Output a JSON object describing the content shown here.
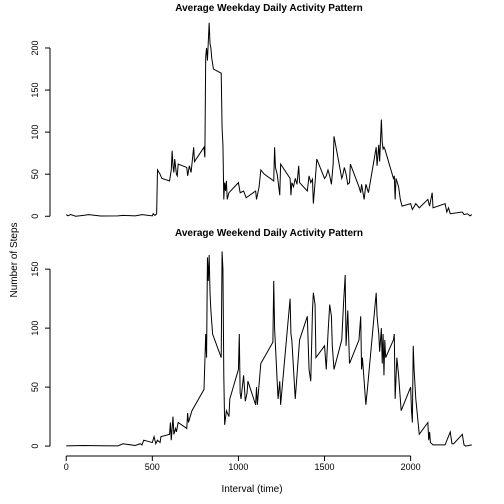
{
  "shared": {
    "xlabel": "Interval (time)",
    "ylabel": "Number of Steps"
  },
  "chart_data": [
    {
      "type": "line",
      "title": "Average Weekday Daily Activity Pattern",
      "x": [
        0,
        10,
        25,
        55,
        100,
        130,
        200,
        300,
        330,
        400,
        440,
        500,
        505,
        515,
        525,
        530,
        545,
        555,
        600,
        610,
        615,
        620,
        625,
        630,
        640,
        645,
        650,
        700,
        705,
        715,
        725,
        740,
        745,
        800,
        805,
        810,
        815,
        820,
        830,
        835,
        840,
        845,
        855,
        900,
        905,
        910,
        915,
        920,
        925,
        930,
        935,
        945,
        1000,
        1010,
        1030,
        1045,
        1100,
        1105,
        1120,
        1130,
        1150,
        1205,
        1210,
        1215,
        1225,
        1230,
        1240,
        1245,
        1300,
        1305,
        1310,
        1320,
        1330,
        1340,
        1350,
        1355,
        1400,
        1410,
        1420,
        1430,
        1435,
        1445,
        1455,
        1500,
        1510,
        1520,
        1530,
        1540,
        1550,
        1555,
        1600,
        1605,
        1615,
        1625,
        1635,
        1645,
        1650,
        1700,
        1710,
        1715,
        1730,
        1740,
        1755,
        1800,
        1805,
        1815,
        1820,
        1830,
        1835,
        1840,
        1845,
        1850,
        1900,
        1905,
        1910,
        1915,
        1930,
        1940,
        1950,
        2000,
        2010,
        2030,
        2050,
        2100,
        2110,
        2125,
        2130,
        2200,
        2210,
        2220,
        2230,
        2300,
        2310,
        2330,
        2345,
        2355
      ],
      "series": [
        {
          "color": "#000000",
          "values": [
            2,
            0.5,
            2,
            0,
            1,
            2,
            0.3,
            0.5,
            1,
            0.5,
            2,
            0.5,
            3,
            1,
            3,
            55,
            50,
            45,
            42,
            55,
            78,
            60,
            52,
            68,
            50,
            48,
            62,
            58,
            48,
            60,
            52,
            82,
            65,
            82,
            70,
            190,
            200,
            185,
            230,
            205,
            200,
            188,
            175,
            170,
            105,
            85,
            20,
            40,
            30,
            42,
            20,
            28,
            40,
            28,
            30,
            22,
            30,
            20,
            35,
            55,
            50,
            42,
            82,
            58,
            50,
            42,
            25,
            62,
            45,
            25,
            40,
            35,
            45,
            38,
            60,
            40,
            30,
            48,
            40,
            44,
            15,
            40,
            68,
            45,
            48,
            55,
            48,
            38,
            62,
            95,
            45,
            48,
            58,
            50,
            38,
            40,
            62,
            35,
            28,
            38,
            20,
            38,
            28,
            82,
            60,
            85,
            65,
            115,
            88,
            80,
            82,
            80,
            45,
            48,
            20,
            45,
            35,
            20,
            12,
            15,
            8,
            15,
            10,
            20,
            12,
            28,
            10,
            15,
            5,
            10,
            3,
            5,
            2,
            3,
            0.5,
            2
          ]
        }
      ],
      "xlim": [
        -94.2,
        2449.2
      ],
      "ylim": [
        -9.2,
        239.2
      ],
      "yticks": [
        0,
        50,
        100,
        150,
        200
      ]
    },
    {
      "type": "line",
      "title": "Average Weekend Daily Activity Pattern",
      "x": [
        0,
        100,
        200,
        300,
        330,
        400,
        430,
        440,
        450,
        500,
        510,
        520,
        530,
        545,
        550,
        600,
        605,
        610,
        620,
        625,
        635,
        640,
        650,
        700,
        705,
        710,
        730,
        800,
        810,
        815,
        820,
        825,
        830,
        835,
        840,
        850,
        900,
        905,
        910,
        915,
        920,
        930,
        945,
        950,
        1000,
        1005,
        1010,
        1015,
        1030,
        1040,
        1050,
        1055,
        1100,
        1105,
        1110,
        1130,
        1200,
        1205,
        1210,
        1215,
        1225,
        1230,
        1240,
        1245,
        1300,
        1305,
        1310,
        1330,
        1345,
        1355,
        1400,
        1410,
        1420,
        1430,
        1435,
        1445,
        1450,
        1500,
        1510,
        1520,
        1530,
        1540,
        1545,
        1555,
        1600,
        1610,
        1620,
        1625,
        1630,
        1635,
        1645,
        1700,
        1710,
        1715,
        1720,
        1730,
        1740,
        1750,
        1800,
        1805,
        1815,
        1820,
        1830,
        1835,
        1840,
        1845,
        1850,
        1855,
        1900,
        1905,
        1910,
        1920,
        1930,
        1945,
        2000,
        2005,
        2010,
        2015,
        2020,
        2030,
        2040,
        2050,
        2100,
        2105,
        2110,
        2115,
        2130,
        2200,
        2230,
        2240,
        2250,
        2300,
        2310,
        2320,
        2355
      ],
      "series": [
        {
          "color": "#000000",
          "values": [
            0.2,
            0.5,
            0.3,
            0.2,
            2,
            0.5,
            2,
            1,
            5,
            3,
            8,
            2,
            5,
            3,
            8,
            10,
            20,
            5,
            25,
            10,
            15,
            12,
            20,
            15,
            28,
            20,
            30,
            48,
            95,
            75,
            160,
            140,
            162,
            130,
            115,
            95,
            75,
            165,
            150,
            60,
            18,
            30,
            25,
            40,
            65,
            95,
            45,
            40,
            60,
            38,
            45,
            55,
            35,
            50,
            35,
            70,
            88,
            140,
            100,
            85,
            55,
            40,
            55,
            35,
            125,
            95,
            90,
            40,
            70,
            90,
            110,
            65,
            55,
            115,
            130,
            120,
            75,
            85,
            65,
            95,
            120,
            110,
            85,
            65,
            90,
            120,
            145,
            85,
            100,
            115,
            70,
            90,
            110,
            65,
            75,
            55,
            35,
            50,
            130,
            110,
            95,
            80,
            100,
            70,
            95,
            60,
            90,
            75,
            90,
            95,
            40,
            75,
            60,
            30,
            50,
            30,
            20,
            85,
            65,
            40,
            25,
            10,
            20,
            5,
            12,
            3,
            1,
            1,
            12,
            2,
            2,
            10,
            1,
            0,
            1
          ]
        }
      ],
      "xlim": [
        -94.2,
        2449.2
      ],
      "ylim": [
        -6.7,
        174.7
      ],
      "yticks": [
        0,
        50,
        100,
        150
      ],
      "xticks": [
        0,
        500,
        1000,
        1500,
        2000
      ]
    }
  ]
}
